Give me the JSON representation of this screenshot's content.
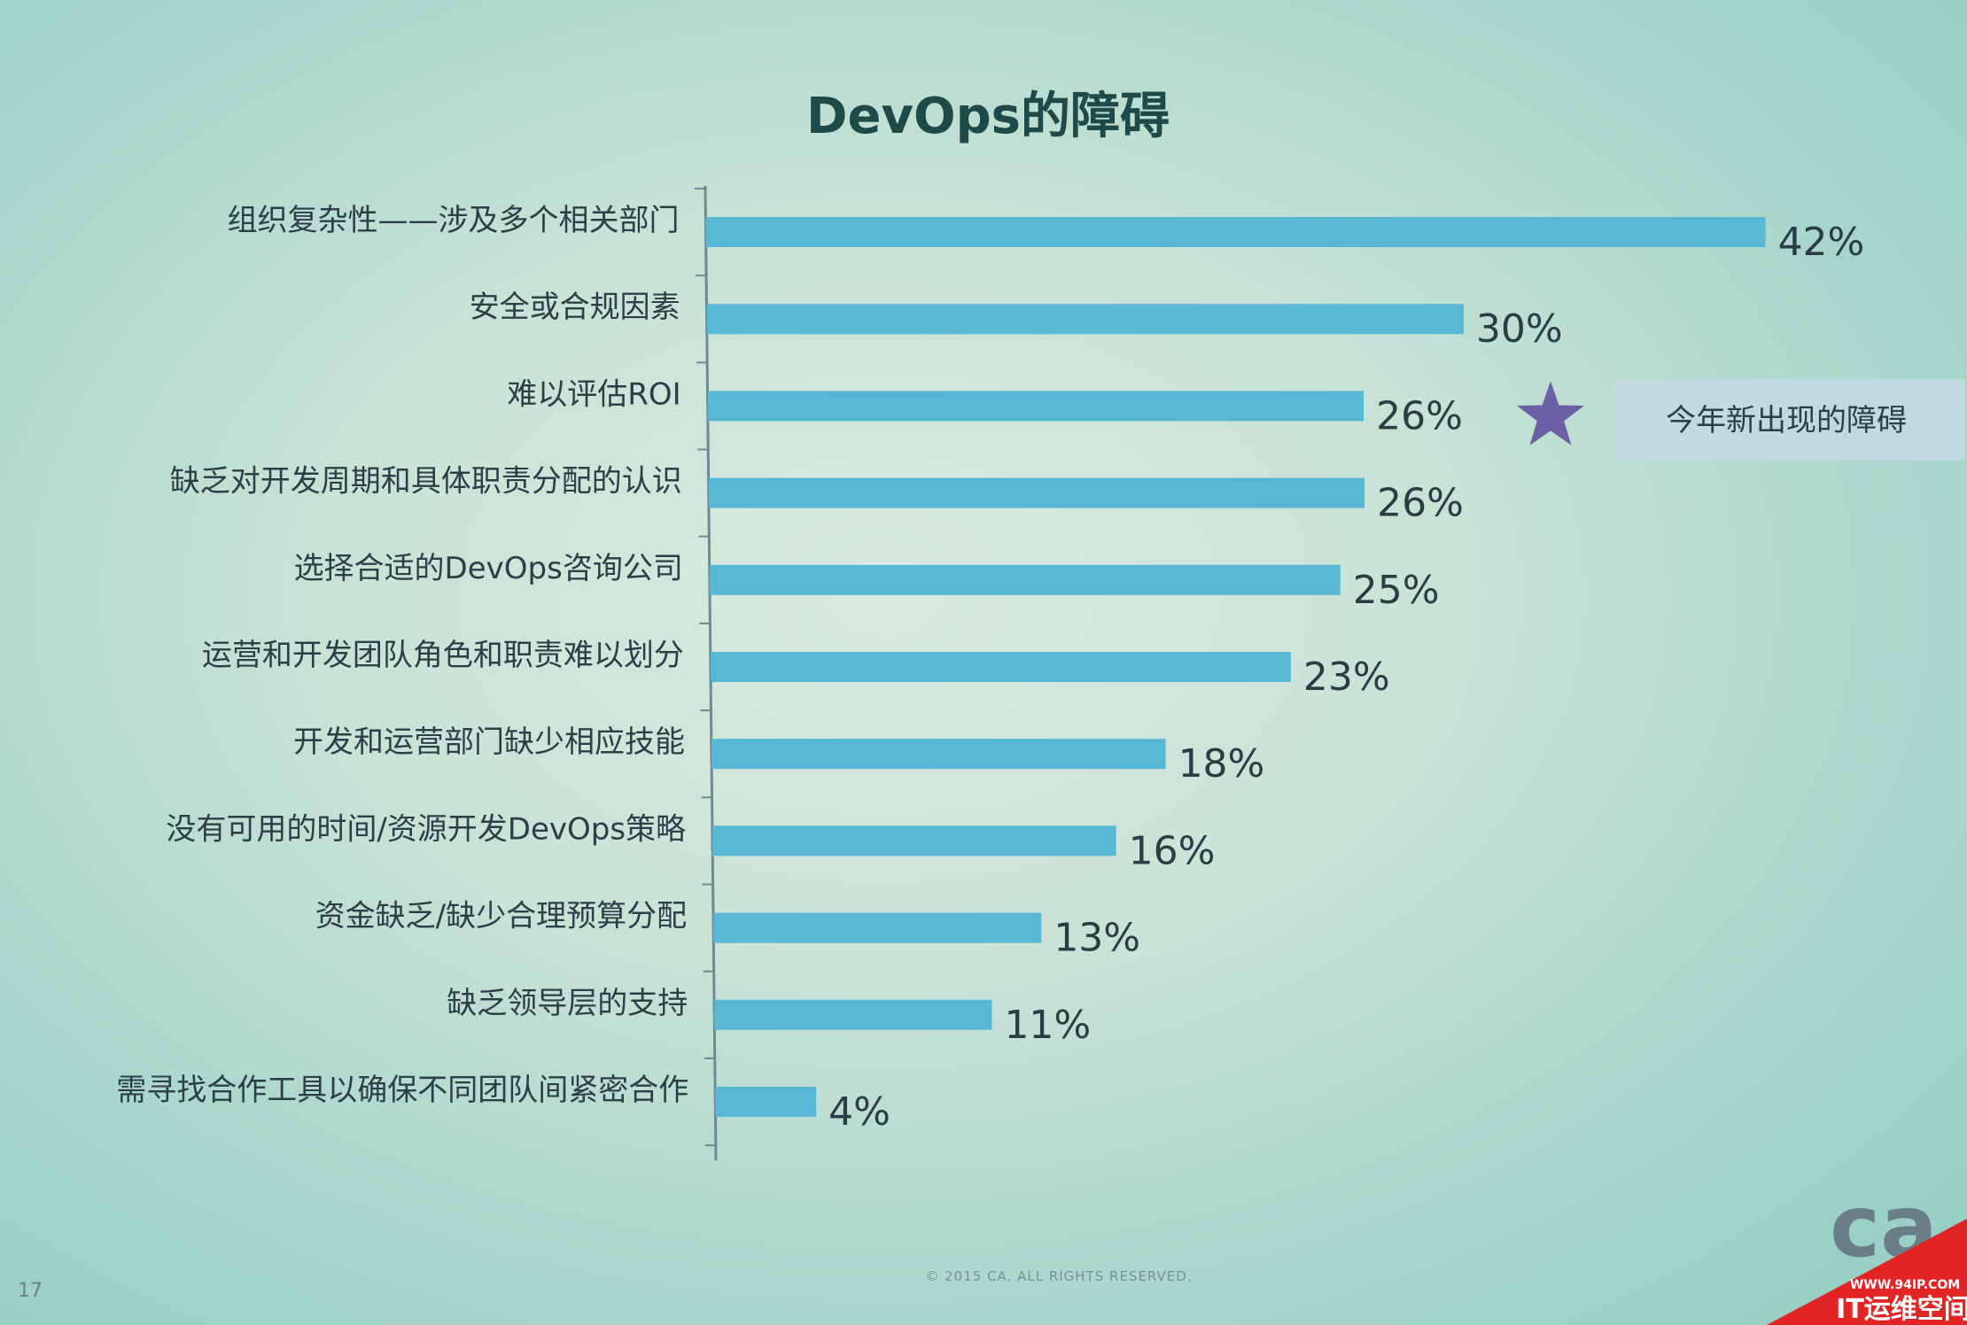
{
  "chart_data": {
    "type": "bar",
    "orientation": "horizontal",
    "title": "DevOps的障碍",
    "xlabel": "",
    "ylabel": "",
    "xlim": [
      0,
      42
    ],
    "grid": false,
    "legend": "none",
    "categories": [
      "组织复杂性——涉及多个相关部门",
      "安全或合规因素",
      "难以评估ROI",
      "缺乏对开发周期和具体职责分配的认识",
      "选择合适的DevOps咨询公司",
      "运营和开发团队角色和职责难以划分",
      "开发和运营部门缺少相应技能",
      "没有可用的时间/资源开发DevOps策略",
      "资金缺乏/缺少合理预算分配",
      "缺乏领导层的支持",
      "需寻找合作工具以确保不同团队间紧密合作"
    ],
    "values": [
      42,
      30,
      26,
      26,
      25,
      23,
      18,
      16,
      13,
      11,
      4
    ],
    "value_labels": [
      "42%",
      "30%",
      "26%",
      "26%",
      "25%",
      "23%",
      "18%",
      "16%",
      "13%",
      "11%",
      "4%"
    ],
    "annotation": {
      "category_index": 2,
      "icon": "star-icon",
      "text": "今年新出现的障碍"
    },
    "colors": {
      "bar": "#58b7d5",
      "star": "#6b5fa5",
      "axis": "#6e8a92"
    }
  },
  "footer": {
    "copyright": "© 2015 CA. ALL RIGHTS RESERVED.",
    "page_number": "17"
  },
  "logo": {
    "text": "ca"
  },
  "watermark": {
    "url": "WWW.94IP.COM",
    "text": "IT运维空间"
  }
}
